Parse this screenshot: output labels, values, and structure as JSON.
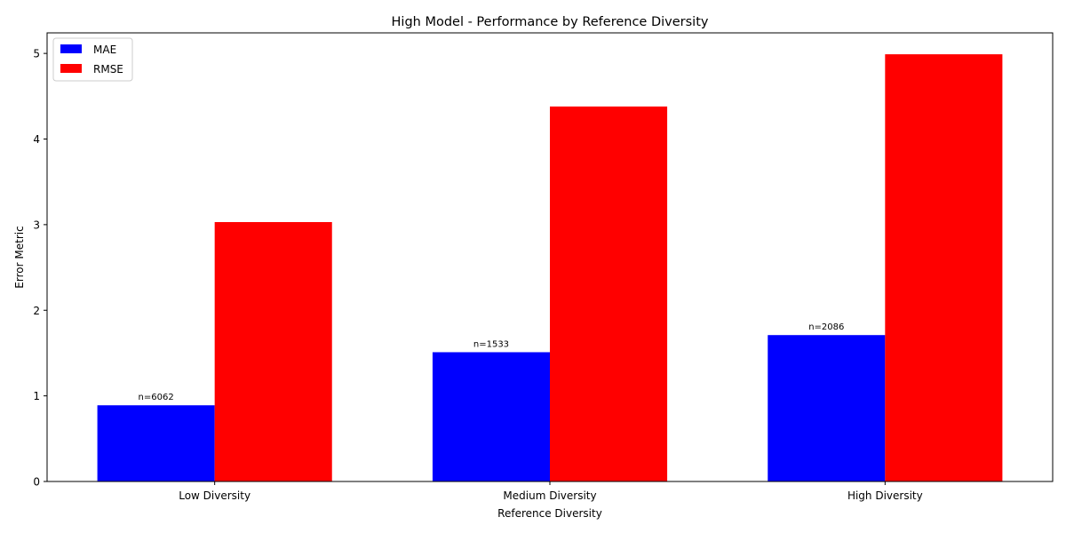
{
  "chart_data": {
    "type": "bar",
    "title": "High Model - Performance by Reference Diversity",
    "xlabel": "Reference Diversity",
    "ylabel": "Error Metric",
    "categories": [
      "Low Diversity",
      "Medium Diversity",
      "High Diversity"
    ],
    "series": [
      {
        "name": "MAE",
        "color": "#0000ff",
        "values": [
          0.89,
          1.51,
          1.71
        ]
      },
      {
        "name": "RMSE",
        "color": "#ff0000",
        "values": [
          3.03,
          4.38,
          4.99
        ]
      }
    ],
    "annotations": [
      "n=6062",
      "n=1533",
      "n=2086"
    ],
    "ylim": [
      0,
      5.24
    ],
    "yticks": [
      0,
      1,
      2,
      3,
      4,
      5
    ],
    "grid": false,
    "legend": "top-left"
  }
}
